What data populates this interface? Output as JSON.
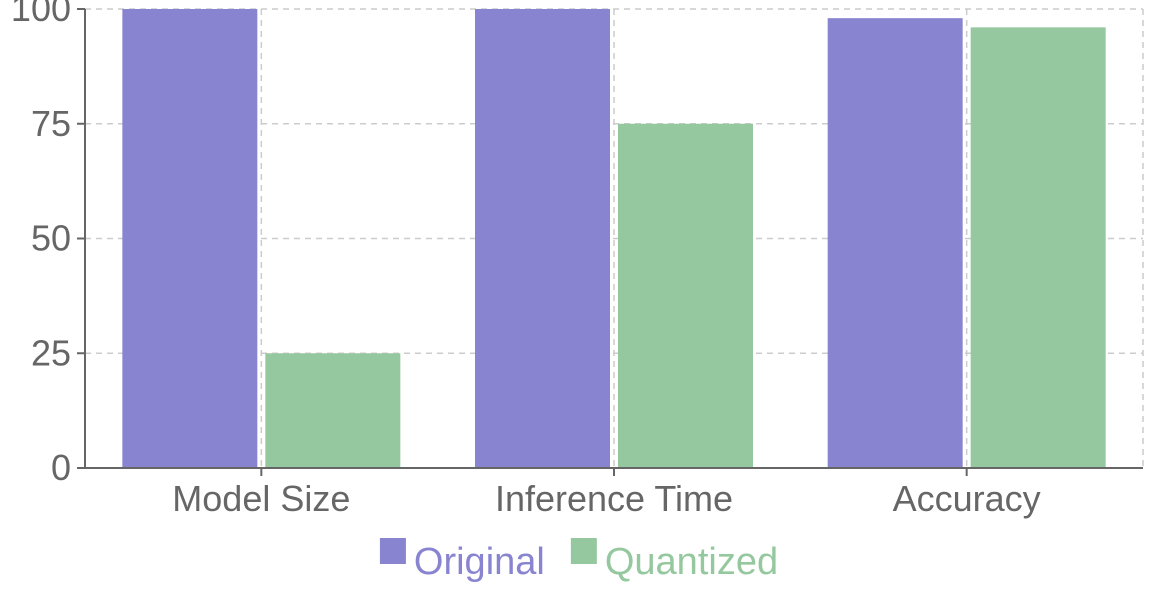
{
  "chart_data": {
    "type": "bar",
    "title": "",
    "xlabel": "",
    "ylabel": "",
    "categories": [
      "Model Size",
      "Inference Time",
      "Accuracy"
    ],
    "series": [
      {
        "name": "Original",
        "values": [
          100,
          100,
          98
        ],
        "color": "#8884d0"
      },
      {
        "name": "Quantized",
        "values": [
          25,
          75,
          96
        ],
        "color": "#95c89e"
      }
    ],
    "ylim": [
      0,
      100
    ],
    "yticks": [
      0,
      25,
      50,
      75,
      100
    ],
    "grid": true,
    "legend": "bottom-center"
  }
}
